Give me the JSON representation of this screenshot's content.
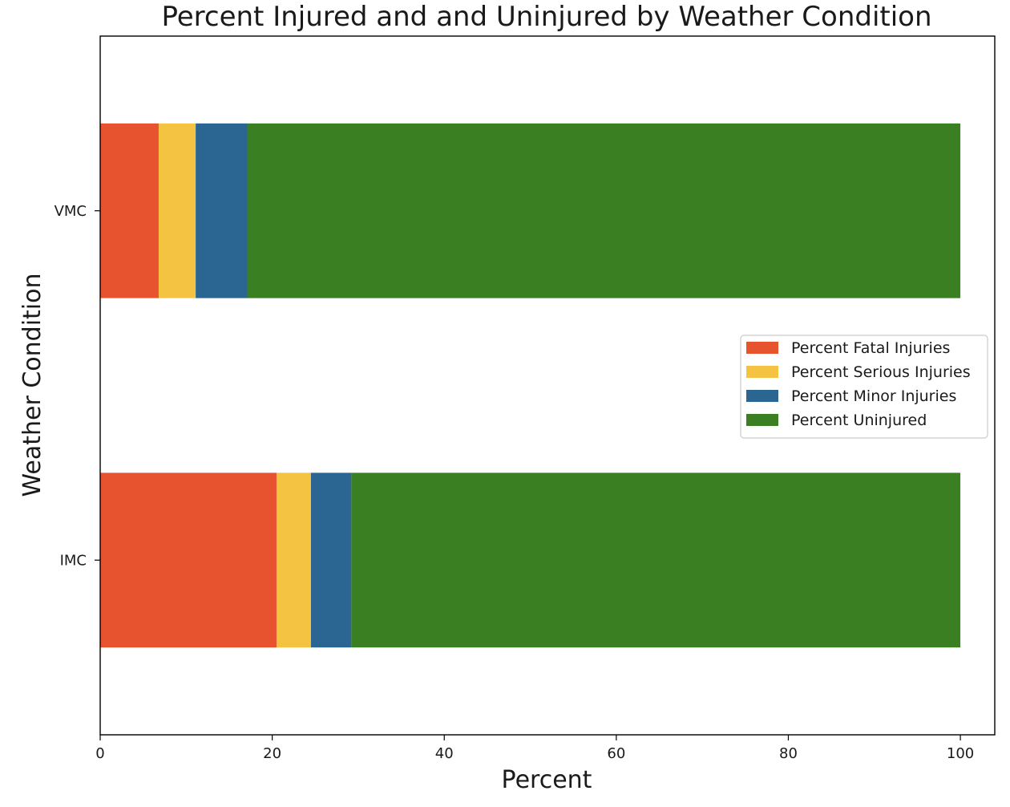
{
  "chart_data": {
    "type": "bar",
    "orientation": "horizontal",
    "stacked": true,
    "title": "Percent Injured and and Uninjured by Weather Condition",
    "xlabel": "Percent",
    "ylabel": "Weather Condition",
    "xlim": [
      0,
      104
    ],
    "xticks": [
      0,
      20,
      40,
      60,
      80,
      100
    ],
    "categories": [
      "IMC",
      "VMC"
    ],
    "series": [
      {
        "name": "Percent Fatal Injuries",
        "color": "#e8532f",
        "values": [
          20.5,
          6.8
        ]
      },
      {
        "name": "Percent Serious Injuries",
        "color": "#f5c342",
        "values": [
          4.0,
          4.3
        ]
      },
      {
        "name": "Percent Minor Injuries",
        "color": "#2b6592",
        "values": [
          4.7,
          6.0
        ]
      },
      {
        "name": "Percent Uninjured",
        "color": "#3a7f22",
        "values": [
          70.8,
          82.9
        ]
      }
    ],
    "legend": {
      "position": "center-right"
    },
    "grid": false
  }
}
